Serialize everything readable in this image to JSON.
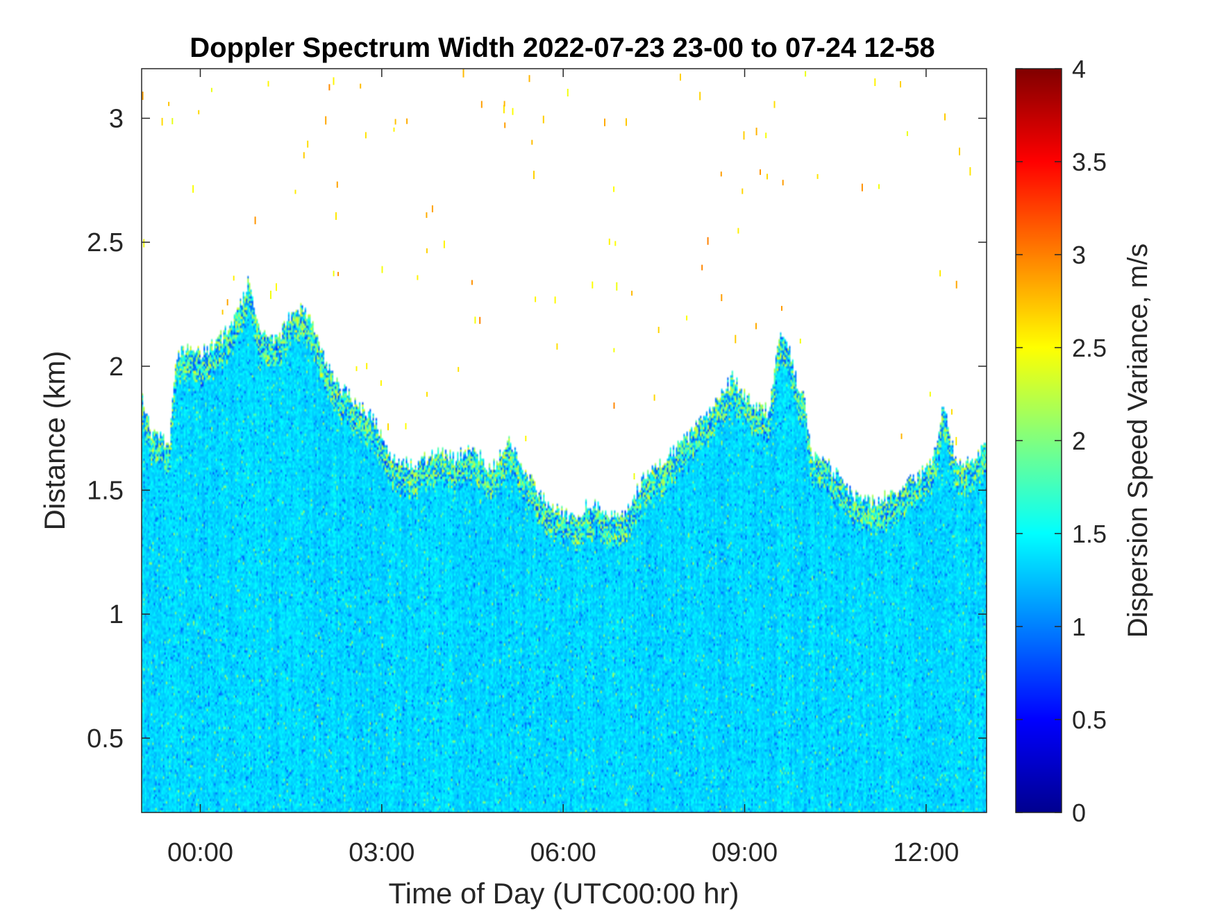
{
  "chart_data": {
    "type": "heatmap",
    "title": "Doppler Spectrum Width 2022-07-23 23-00 to 07-24 12-58",
    "xlabel": "Time of Day (UTC00:00 hr)",
    "ylabel": "Distance (km)",
    "colorbar_label": "Dispersion Speed Variance, m/s",
    "colormap": "jet",
    "x_unit": "hours since 2022-07-24 00:00 UTC",
    "xlim": [
      -0.97,
      13.0
    ],
    "ylim": [
      0.2,
      3.2
    ],
    "clim": [
      0,
      4
    ],
    "x_ticks": [
      0,
      3,
      6,
      9,
      12
    ],
    "x_tick_labels": [
      "00:00",
      "03:00",
      "06:00",
      "09:00",
      "12:00"
    ],
    "y_ticks": [
      0.5,
      1,
      1.5,
      2,
      2.5,
      3
    ],
    "y_tick_labels": [
      "0.5",
      "1",
      "1.5",
      "2",
      "2.5",
      "3"
    ],
    "colorbar_ticks": [
      0,
      0.5,
      1,
      1.5,
      2,
      2.5,
      3,
      3.5,
      4
    ],
    "colorbar_tick_labels": [
      "0",
      "0.5",
      "1",
      "1.5",
      "2",
      "2.5",
      "3",
      "3.5",
      "4"
    ],
    "typical_value": 1.35,
    "signal_top_km": {
      "time": [
        -0.97,
        -0.8,
        -0.5,
        -0.4,
        -0.2,
        0.0,
        0.3,
        0.6,
        0.8,
        1.0,
        1.3,
        1.6,
        1.8,
        2.0,
        2.3,
        2.6,
        2.9,
        3.2,
        3.5,
        3.9,
        4.2,
        4.5,
        4.8,
        5.1,
        5.3,
        5.6,
        5.9,
        6.2,
        6.4,
        6.7,
        6.9,
        7.1,
        7.4,
        7.8,
        8.2,
        8.6,
        8.8,
        9.1,
        9.4,
        9.6,
        9.7,
        9.85,
        10.0,
        10.1,
        10.4,
        10.8,
        11.2,
        11.5,
        11.8,
        12.1,
        12.3,
        12.5,
        12.8,
        13.0
      ],
      "top": [
        1.88,
        1.72,
        1.7,
        2.05,
        2.08,
        2.05,
        2.1,
        2.2,
        2.35,
        2.12,
        2.12,
        2.25,
        2.2,
        2.05,
        1.92,
        1.85,
        1.78,
        1.62,
        1.6,
        1.65,
        1.63,
        1.68,
        1.58,
        1.7,
        1.62,
        1.48,
        1.42,
        1.38,
        1.45,
        1.42,
        1.38,
        1.45,
        1.58,
        1.65,
        1.75,
        1.88,
        1.95,
        1.85,
        1.82,
        2.15,
        2.1,
        1.95,
        1.85,
        1.65,
        1.6,
        1.48,
        1.45,
        1.5,
        1.55,
        1.6,
        1.85,
        1.6,
        1.62,
        1.68
      ]
    }
  }
}
